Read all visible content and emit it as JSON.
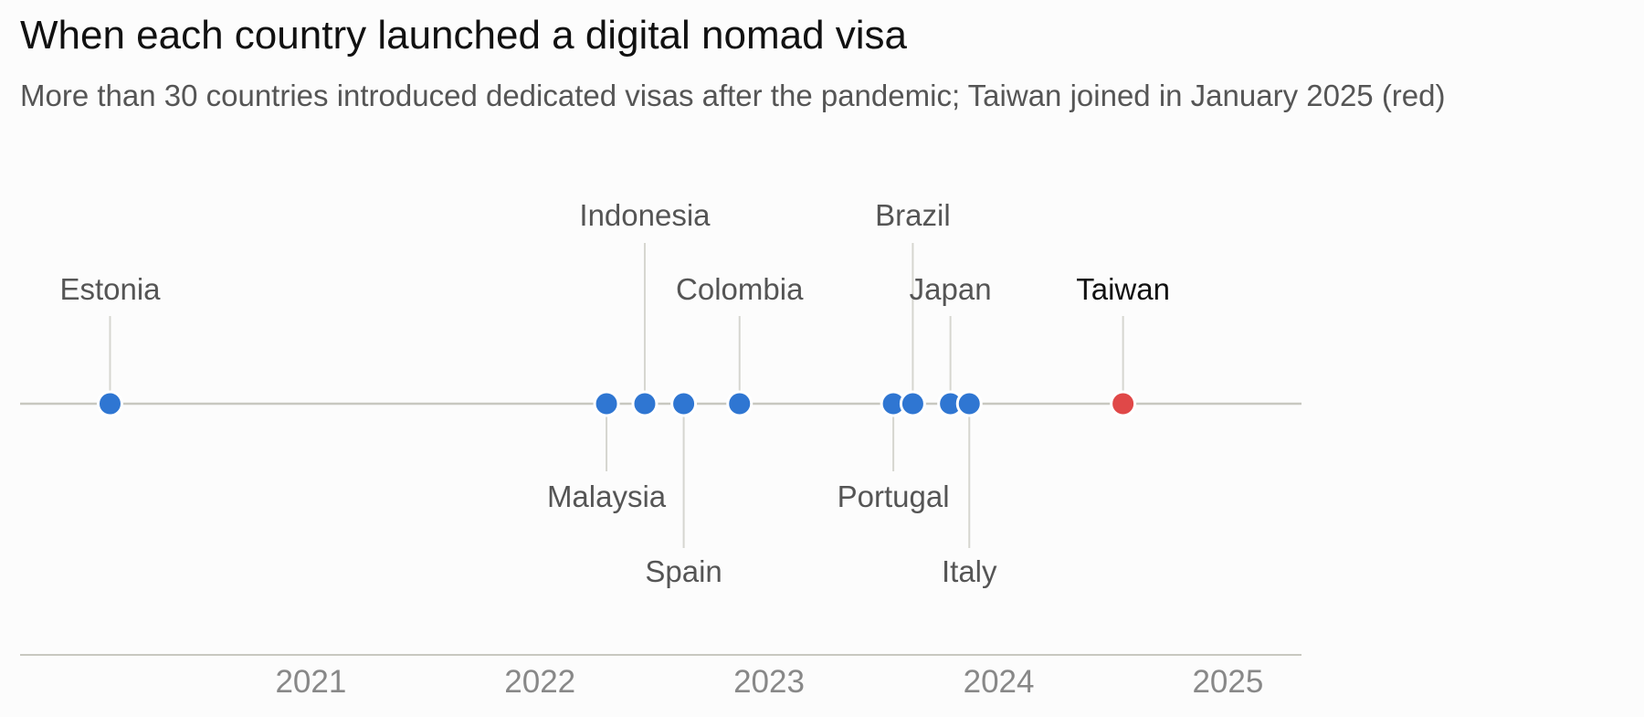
{
  "chart_data": {
    "type": "scatter",
    "title": "When each country launched a digital nomad visa",
    "subtitle": "More than 30 countries introduced dedicated visas after the pandemic; Taiwan joined in January 2025 (red)",
    "xlabel": "",
    "ylabel": "",
    "x_ticks": [
      "2021",
      "2022",
      "2023",
      "2024",
      "2025"
    ],
    "xlim": [
      "2020-07-01",
      "2025-12-31"
    ],
    "grid": false,
    "points": [
      {
        "country": "Estonia",
        "date": "2020-08",
        "side": "above",
        "level": 1,
        "highlight": false
      },
      {
        "country": "Malaysia",
        "date": "2022-10",
        "side": "below",
        "level": 1,
        "highlight": false
      },
      {
        "country": "Indonesia",
        "date": "2022-12",
        "side": "above",
        "level": 2,
        "highlight": false
      },
      {
        "country": "Spain",
        "date": "2023-02",
        "side": "below",
        "level": 2,
        "highlight": false
      },
      {
        "country": "Colombia",
        "date": "2023-05",
        "side": "above",
        "level": 1,
        "highlight": false
      },
      {
        "country": "Portugal",
        "date": "2024-01",
        "side": "below",
        "level": 1,
        "highlight": false
      },
      {
        "country": "Brazil",
        "date": "2024-02",
        "side": "above",
        "level": 2,
        "highlight": false
      },
      {
        "country": "Japan",
        "date": "2024-04",
        "side": "above",
        "level": 1,
        "highlight": false
      },
      {
        "country": "Italy",
        "date": "2024-05",
        "side": "below",
        "level": 2,
        "highlight": false
      },
      {
        "country": "Taiwan",
        "date": "2025-01",
        "side": "above",
        "level": 1,
        "highlight": true
      }
    ],
    "colors": {
      "point": "#2f76d2",
      "highlight": "#e04848",
      "axis": "#c8c8c0",
      "leader": "#d6d6d0",
      "label": "#555555",
      "highlight_label": "#111111"
    }
  }
}
